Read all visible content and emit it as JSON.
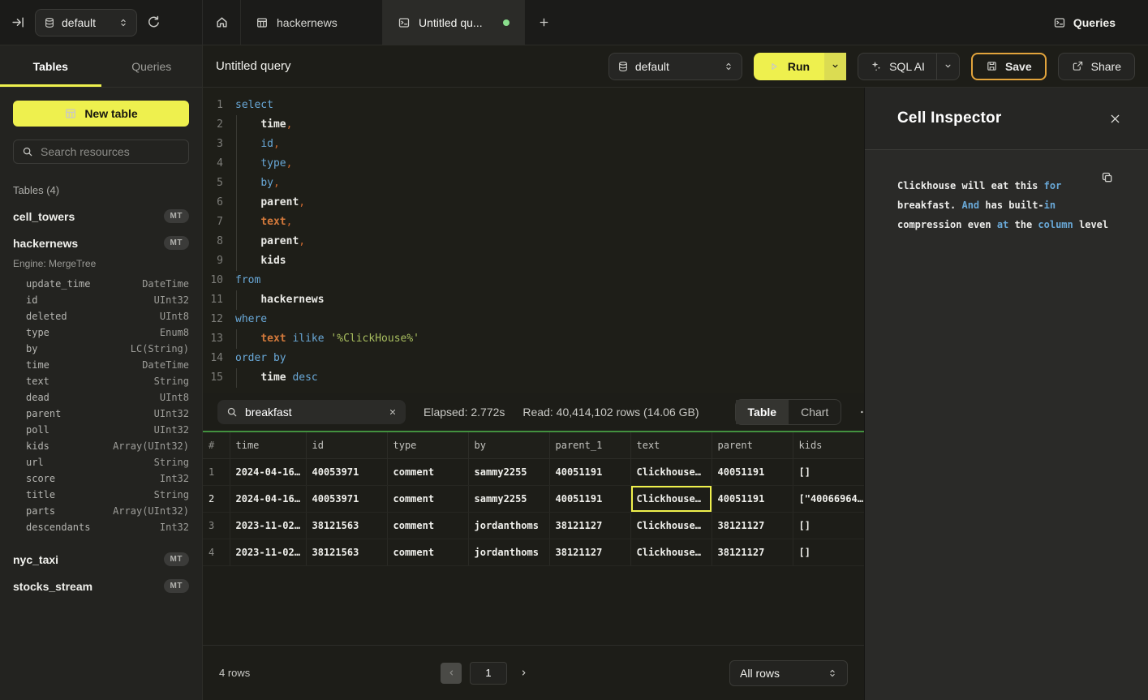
{
  "colors": {
    "accent_yellow": "#eef04e",
    "save_border": "#e2a43c",
    "table_accent_green": "#43913f",
    "tab_dot_green": "#8ade8d",
    "keyword_blue": "#69a8d7",
    "string_green": "#a9bf5f",
    "identifier_orange": "#d3793b",
    "selected_cell_yellow": "#eff04c"
  },
  "topbar": {
    "database_selector": "default",
    "tabs": [
      {
        "label": "",
        "icon": "home"
      },
      {
        "label": "hackernews",
        "icon": "table"
      },
      {
        "label": "Untitled qu...",
        "icon": "console",
        "active": true,
        "unsaved_dot": true
      }
    ],
    "queries_label": "Queries"
  },
  "sidebar": {
    "tabs": [
      {
        "label": "Tables",
        "active": true
      },
      {
        "label": "Queries",
        "active": false
      }
    ],
    "new_table_label": "New table",
    "search_placeholder": "Search resources",
    "section_label": "Tables (4)",
    "tables": [
      {
        "name": "cell_towers",
        "badge": "MT"
      },
      {
        "name": "hackernews",
        "badge": "MT",
        "engine": "Engine: MergeTree",
        "columns": [
          [
            "update_time",
            "DateTime"
          ],
          [
            "id",
            "UInt32"
          ],
          [
            "deleted",
            "UInt8"
          ],
          [
            "type",
            "Enum8"
          ],
          [
            "by",
            "LC(String)"
          ],
          [
            "time",
            "DateTime"
          ],
          [
            "text",
            "String"
          ],
          [
            "dead",
            "UInt8"
          ],
          [
            "parent",
            "UInt32"
          ],
          [
            "poll",
            "UInt32"
          ],
          [
            "kids",
            "Array(UInt32)"
          ],
          [
            "url",
            "String"
          ],
          [
            "score",
            "Int32"
          ],
          [
            "title",
            "String"
          ],
          [
            "parts",
            "Array(UInt32)"
          ],
          [
            "descendants",
            "Int32"
          ]
        ]
      },
      {
        "name": "nyc_taxi",
        "badge": "MT"
      },
      {
        "name": "stocks_stream",
        "badge": "MT"
      }
    ]
  },
  "toolbar": {
    "title": "Untitled query",
    "database_selector": "default",
    "run_label": "Run",
    "sql_ai_label": "SQL AI",
    "save_label": "Save",
    "share_label": "Share"
  },
  "editor": {
    "lines": [
      [
        [
          "select",
          "kw"
        ]
      ],
      [
        [
          "    ",
          ""
        ],
        [
          "time",
          "col"
        ],
        [
          ",",
          "pun"
        ]
      ],
      [
        [
          "    ",
          ""
        ],
        [
          "id",
          "kw"
        ],
        [
          ",",
          "pun"
        ]
      ],
      [
        [
          "    ",
          ""
        ],
        [
          "type",
          "kw"
        ],
        [
          ",",
          "pun"
        ]
      ],
      [
        [
          "    ",
          ""
        ],
        [
          "by",
          "kw"
        ],
        [
          ",",
          "pun"
        ]
      ],
      [
        [
          "    ",
          ""
        ],
        [
          "parent",
          "col"
        ],
        [
          ",",
          "pun"
        ]
      ],
      [
        [
          "    ",
          ""
        ],
        [
          "text",
          "fld"
        ],
        [
          ",",
          "pun"
        ]
      ],
      [
        [
          "    ",
          ""
        ],
        [
          "parent",
          "col"
        ],
        [
          ",",
          "pun"
        ]
      ],
      [
        [
          "    ",
          ""
        ],
        [
          "kids",
          "col"
        ]
      ],
      [
        [
          "from",
          "kw"
        ]
      ],
      [
        [
          "    ",
          ""
        ],
        [
          "hackernews",
          "col"
        ]
      ],
      [
        [
          "where",
          "kw"
        ]
      ],
      [
        [
          "    ",
          ""
        ],
        [
          "text",
          "fld"
        ],
        [
          " ",
          ""
        ],
        [
          "ilike",
          "kw"
        ],
        [
          " ",
          ""
        ],
        [
          "'%ClickHouse%'",
          "str"
        ]
      ],
      [
        [
          "order by",
          "kw"
        ]
      ],
      [
        [
          "    ",
          ""
        ],
        [
          "time",
          "col"
        ],
        [
          " ",
          ""
        ],
        [
          "desc",
          "kw"
        ]
      ]
    ]
  },
  "results": {
    "search_value": "breakfast",
    "elapsed": "Elapsed: 2.772s",
    "read": "Read: 40,414,102 rows (14.06 GB)",
    "views": [
      {
        "label": "Table",
        "active": true
      },
      {
        "label": "Chart",
        "active": false
      }
    ],
    "columns": [
      "#",
      "time",
      "id",
      "type",
      "by",
      "parent_1",
      "text",
      "parent",
      "kids"
    ],
    "rows": [
      [
        "1",
        "2024-04-16…",
        "40053971",
        "comment",
        "sammy2255",
        "40051191",
        "Clickhouse…",
        "40051191",
        "[]"
      ],
      [
        "2",
        "2024-04-16…",
        "40053971",
        "comment",
        "sammy2255",
        "40051191",
        "Clickhouse…",
        "40051191",
        "[\"40066964…"
      ],
      [
        "3",
        "2023-11-02…",
        "38121563",
        "comment",
        "jordanthoms",
        "38121127",
        "Clickhouse…",
        "38121127",
        "[]"
      ],
      [
        "4",
        "2023-11-02…",
        "38121563",
        "comment",
        "jordanthoms",
        "38121127",
        "Clickhouse…",
        "38121127",
        "[]"
      ]
    ],
    "selected_cell": {
      "row_index": 1,
      "col_index": 6
    },
    "footer": {
      "row_count": "4 rows",
      "page": "1",
      "page_size": "All rows"
    }
  },
  "inspector": {
    "title": "Cell Inspector",
    "lines": [
      [
        [
          "Clickhouse will eat this ",
          ""
        ],
        [
          "for",
          "kw"
        ]
      ],
      [
        [
          "breakfast. ",
          ""
        ],
        [
          "And",
          "kw"
        ],
        [
          " has built-",
          ""
        ],
        [
          "in",
          "kw"
        ]
      ],
      [
        [
          "compression even ",
          ""
        ],
        [
          "at",
          "kw"
        ],
        [
          " the ",
          ""
        ],
        [
          "column",
          "kw"
        ],
        [
          " level",
          ""
        ]
      ]
    ]
  }
}
